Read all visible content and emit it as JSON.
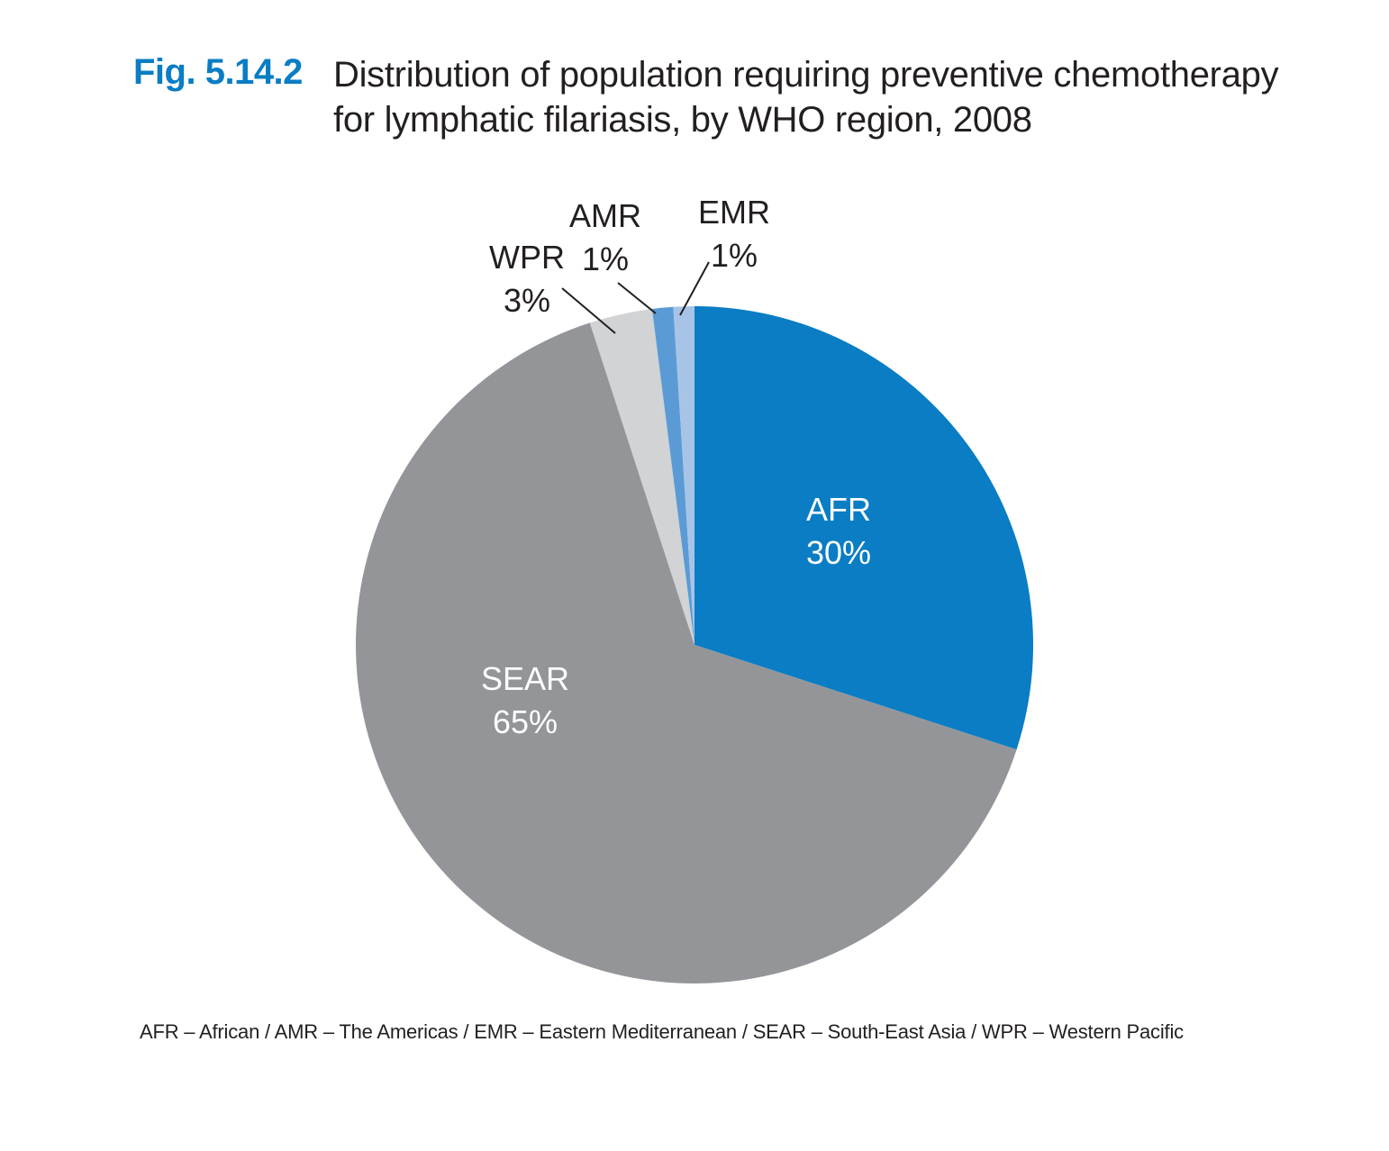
{
  "figure": {
    "number": "Fig. 5.14.2",
    "title_line1": "Distribution of population requiring preventive chemotherapy",
    "title_line2": "for lymphatic filariasis, by WHO region, 2008"
  },
  "chart_data": {
    "type": "pie",
    "title": "Distribution of population requiring preventive chemotherapy for lymphatic filariasis, by WHO region, 2008",
    "slices": [
      {
        "name": "AFR",
        "label": "30%",
        "value": 30,
        "color": "#0a7dc4",
        "label_color": "#ffffff"
      },
      {
        "name": "SEAR",
        "label": "65%",
        "value": 65,
        "color": "#939598",
        "label_color": "#ffffff"
      },
      {
        "name": "WPR",
        "label": "3%",
        "value": 3,
        "color": "#d1d3d4",
        "label_color": "#231f20"
      },
      {
        "name": "AMR",
        "label": "1%",
        "value": 1,
        "color": "#5b9bd5",
        "label_color": "#231f20"
      },
      {
        "name": "EMR",
        "label": "1%",
        "value": 1,
        "color": "#a7c4e7",
        "label_color": "#231f20"
      }
    ]
  },
  "footnote": "AFR – African / AMR – The Americas / EMR – Eastern Mediterranean / SEAR – South-East Asia / WPR – Western Pacific"
}
